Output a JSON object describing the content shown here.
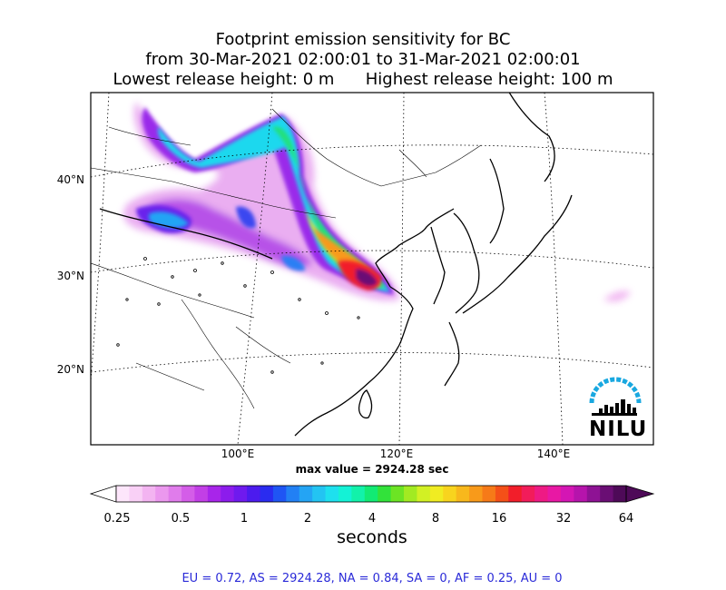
{
  "title": {
    "line1": "Footprint emission sensitivity for BC",
    "line2": "from 30-Mar-2021 02:00:01 to 31-Mar-2021 02:00:01",
    "line3": "Lowest release height: 0 m      Highest release height: 100 m"
  },
  "map": {
    "lat_labels": [
      "40°N",
      "30°N",
      "20°N"
    ],
    "lon_labels": [
      "100°E",
      "120°E",
      "140°E"
    ],
    "max_value_text": "max value = 2924.28 sec",
    "logo_text": "NILU"
  },
  "colorbar": {
    "tick_labels": [
      "0.25",
      "0.5",
      "1",
      "2",
      "4",
      "8",
      "16",
      "32",
      "64"
    ],
    "unit_label": "seconds",
    "colors": [
      "#fde6fb",
      "#f9d0f6",
      "#f3b4f1",
      "#eb98ee",
      "#e07ceb",
      "#d45de8",
      "#c23fe6",
      "#a825ea",
      "#8c1cec",
      "#6f1aee",
      "#4c1bee",
      "#2a2cf0",
      "#1f55f4",
      "#2280f4",
      "#24a4f4",
      "#23c4f2",
      "#1ee0ee",
      "#14f2d6",
      "#12f2aa",
      "#12ea74",
      "#32e23a",
      "#6ce424",
      "#a2ea22",
      "#d2f024",
      "#f0ec22",
      "#f8d41e",
      "#f8b81c",
      "#f89a1a",
      "#f67a18",
      "#f45018",
      "#f21e2a",
      "#f21c5a",
      "#ee1a84",
      "#e818a4",
      "#d416b4",
      "#b614ac",
      "#8e1294",
      "#6a0e74",
      "#4e0a58"
    ]
  },
  "regions_text": "EU = 0.72,  AS = 2924.28,  NA = 0.84,  SA = 0,  AF = 0.25,  AU = 0",
  "colors": {
    "ocean": "#ffffff",
    "coast": "#000000",
    "regions": "#2a2ad8",
    "logo_arc": "#19a8e0"
  }
}
